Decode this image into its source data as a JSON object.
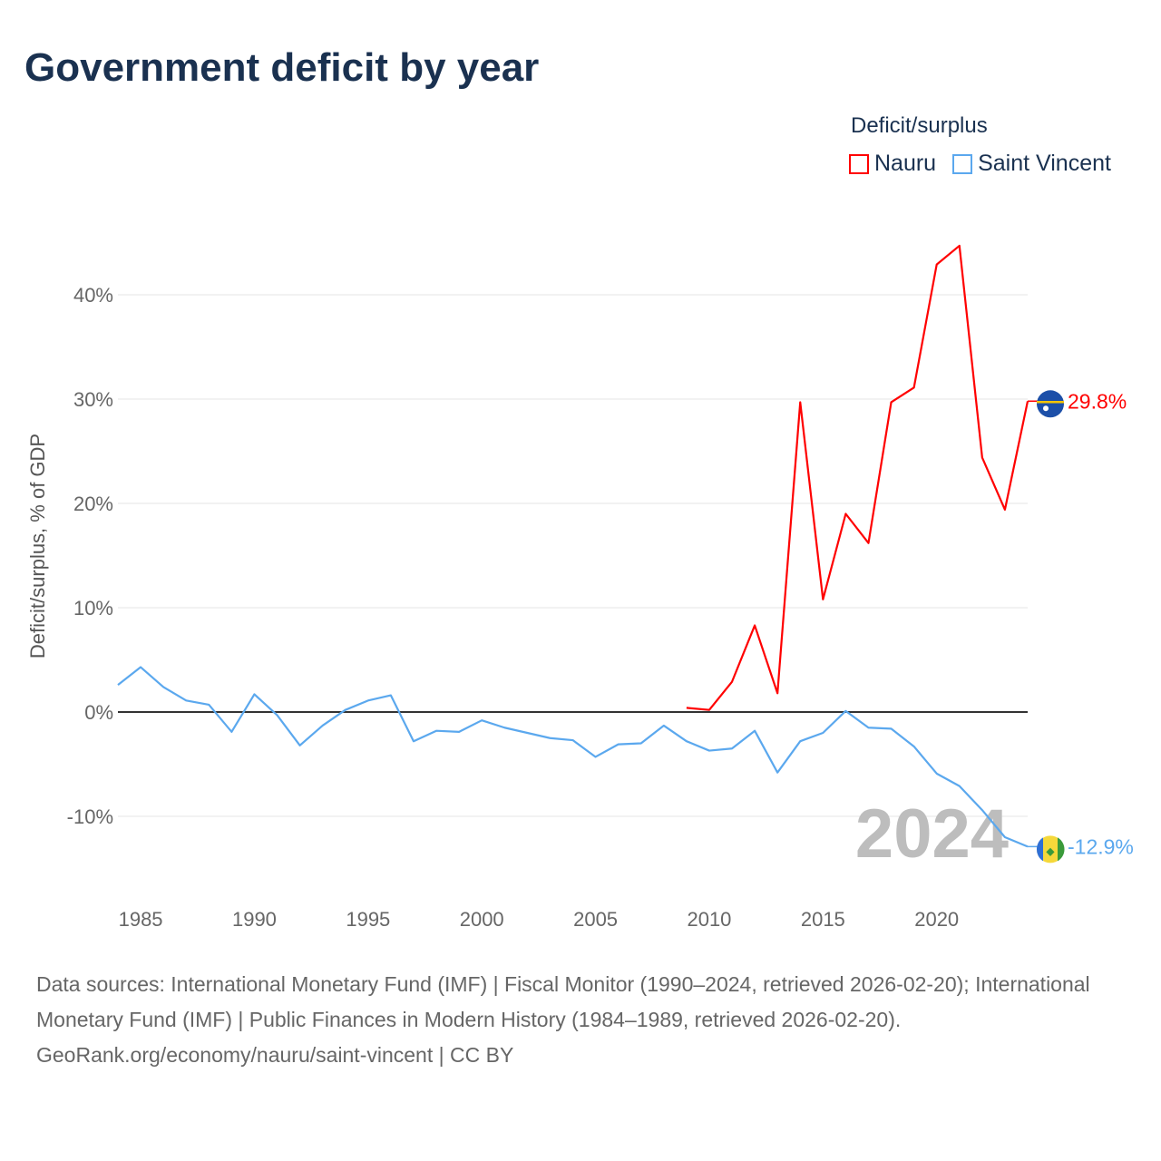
{
  "title": "Government deficit by year",
  "legend": {
    "title": "Deficit/surplus",
    "items": [
      {
        "label": "Nauru",
        "color": "#ff0000"
      },
      {
        "label": "Saint Vincent",
        "color": "#5ba8ee"
      }
    ]
  },
  "chart_data": {
    "type": "line",
    "title": "Government deficit by year",
    "ylabel": "Deficit/surplus, % of GDP",
    "xlabel": "",
    "xlim": [
      1984,
      2024
    ],
    "ylim": [
      -17,
      47
    ],
    "yticks": [
      -10,
      0,
      10,
      20,
      30,
      40
    ],
    "ytick_labels": [
      "-10%",
      "0%",
      "10%",
      "20%",
      "30%",
      "40%"
    ],
    "xticks": [
      1985,
      1990,
      1995,
      2000,
      2005,
      2010,
      2015,
      2020
    ],
    "xtick_labels": [
      "1985",
      "1990",
      "1995",
      "2000",
      "2005",
      "2010",
      "2015",
      "2020"
    ],
    "grid": true,
    "legend_position": "top-right",
    "year_label": "2024",
    "series": [
      {
        "name": "Nauru",
        "color": "#ff0000",
        "end_label": "29.8%",
        "x": [
          2009,
          2010,
          2011,
          2012,
          2013,
          2014,
          2015,
          2016,
          2017,
          2018,
          2019,
          2020,
          2021,
          2022,
          2023,
          2024
        ],
        "values": [
          0.4,
          0.2,
          2.9,
          8.3,
          1.8,
          29.7,
          10.8,
          19.0,
          16.2,
          29.7,
          31.1,
          42.9,
          44.7,
          24.4,
          19.4,
          29.8
        ]
      },
      {
        "name": "Saint Vincent",
        "color": "#5ba8ee",
        "end_label": "-12.9%",
        "x": [
          1984,
          1985,
          1986,
          1987,
          1988,
          1989,
          1990,
          1991,
          1992,
          1993,
          1994,
          1995,
          1996,
          1997,
          1998,
          1999,
          2000,
          2001,
          2002,
          2003,
          2004,
          2005,
          2006,
          2007,
          2008,
          2009,
          2010,
          2011,
          2012,
          2013,
          2014,
          2015,
          2016,
          2017,
          2018,
          2019,
          2020,
          2021,
          2022,
          2023,
          2024
        ],
        "values": [
          2.6,
          4.3,
          2.4,
          1.1,
          0.7,
          -1.9,
          1.7,
          -0.3,
          -3.2,
          -1.3,
          0.2,
          1.1,
          1.6,
          -2.8,
          -1.8,
          -1.9,
          -0.8,
          -1.5,
          -2.0,
          -2.5,
          -2.7,
          -4.3,
          -3.1,
          -3.0,
          -1.3,
          -2.8,
          -3.7,
          -3.5,
          -1.8,
          -5.8,
          -2.8,
          -2.0,
          0.1,
          -1.5,
          -1.6,
          -3.3,
          -5.9,
          -7.1,
          -9.4,
          -12.0,
          -12.9
        ]
      }
    ]
  },
  "footer": {
    "sources": "Data sources: International Monetary Fund (IMF) | Fiscal Monitor (1990–2024, retrieved 2026-02-20); International Monetary Fund (IMF) | Public Finances in Modern History (1984–1989, retrieved 2026-02-20).",
    "link": "GeoRank.org/economy/nauru/saint-vincent",
    "license": " | CC BY"
  }
}
